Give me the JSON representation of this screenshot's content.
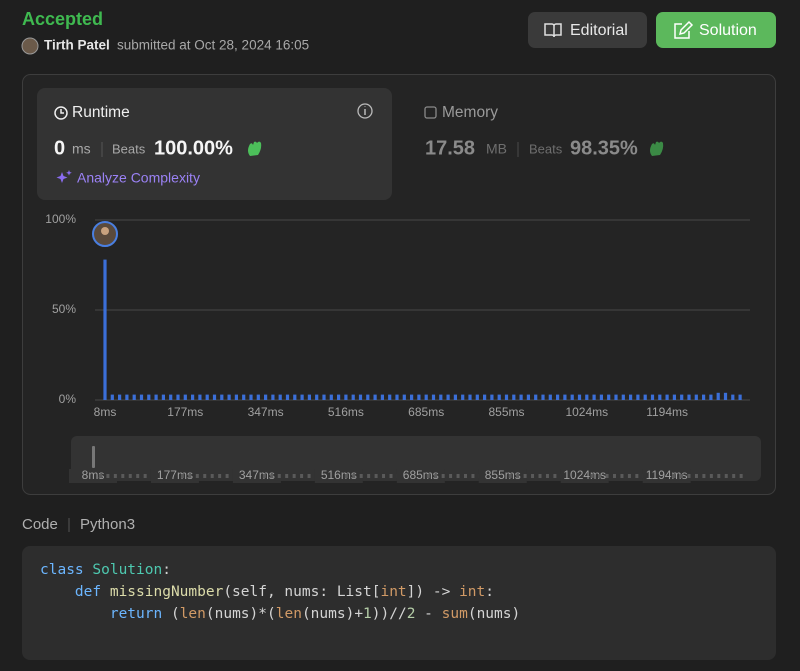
{
  "header": {
    "status": "Accepted",
    "user": "Tirth Patel",
    "submitted": "submitted at Oct 28, 2024 16:05",
    "buttons": [
      "Editorial",
      "Solution"
    ]
  },
  "runtime": {
    "title": "Runtime",
    "value": "0",
    "unit": "ms",
    "beats_label": "Beats",
    "beats": "100.00%",
    "action": "Analyze Complexity"
  },
  "memory": {
    "title": "Memory",
    "value": "17.58",
    "unit": "MB",
    "beats_label": "Beats",
    "beats": "98.35%"
  },
  "chart_data": {
    "type": "bar",
    "color": "#3b6fd8",
    "ylim": [
      0,
      100
    ],
    "yticks": [
      {
        "value": 0,
        "label": "0%"
      },
      {
        "value": 50,
        "label": "50%"
      },
      {
        "value": 100,
        "label": "100%"
      }
    ],
    "grid": true,
    "categories": [
      "8ms",
      null,
      null,
      null,
      null,
      null,
      null,
      null,
      null,
      null,
      null,
      "177ms",
      null,
      null,
      null,
      null,
      null,
      null,
      null,
      null,
      null,
      null,
      "347ms",
      null,
      null,
      null,
      null,
      null,
      null,
      null,
      null,
      null,
      null,
      "516ms",
      null,
      null,
      null,
      null,
      null,
      null,
      null,
      null,
      null,
      null,
      "685ms",
      null,
      null,
      null,
      null,
      null,
      null,
      null,
      null,
      null,
      null,
      "855ms",
      null,
      null,
      null,
      null,
      null,
      null,
      null,
      null,
      null,
      null,
      "1024ms",
      null,
      null,
      null,
      null,
      null,
      null,
      null,
      null,
      null,
      null,
      "1194ms",
      null,
      null,
      null,
      null,
      null,
      null,
      null,
      null,
      null,
      null
    ],
    "values": [
      78,
      3,
      3,
      3,
      3,
      3,
      3,
      3,
      3,
      3,
      3,
      3,
      3,
      3,
      3,
      3,
      3,
      3,
      3,
      3,
      3,
      3,
      3,
      3,
      3,
      3,
      3,
      3,
      3,
      3,
      3,
      3,
      3,
      3,
      3,
      3,
      3,
      3,
      3,
      3,
      3,
      3,
      3,
      3,
      3,
      3,
      3,
      3,
      3,
      3,
      3,
      3,
      3,
      3,
      3,
      3,
      3,
      3,
      3,
      3,
      3,
      3,
      3,
      3,
      3,
      3,
      3,
      3,
      3,
      3,
      3,
      3,
      3,
      3,
      3,
      3,
      3,
      3,
      3,
      3,
      3,
      3,
      3,
      3,
      4,
      4,
      3,
      3
    ]
  },
  "code": {
    "label": "Code",
    "language": "Python3",
    "lines": [
      [
        {
          "text": "class",
          "color": "#6cb6ff"
        },
        {
          "text": " Solution",
          "color": "#4ec9b0"
        },
        {
          "text": ":",
          "color": "#d4d4d4"
        }
      ],
      [
        {
          "text": "    def",
          "color": "#6cb6ff"
        },
        {
          "text": " missingNumber",
          "color": "#dcdcaa"
        },
        {
          "text": "(self, nums: List[",
          "color": "#d4d4d4"
        },
        {
          "text": "int",
          "color": "#d19a66"
        },
        {
          "text": "]) -> ",
          "color": "#d4d4d4"
        },
        {
          "text": "int",
          "color": "#d19a66"
        },
        {
          "text": ":",
          "color": "#d4d4d4"
        }
      ],
      [
        {
          "text": "        return",
          "color": "#6cb6ff"
        },
        {
          "text": " (",
          "color": "#d4d4d4"
        },
        {
          "text": "len",
          "color": "#d19a66"
        },
        {
          "text": "(nums)*(",
          "color": "#d4d4d4"
        },
        {
          "text": "len",
          "color": "#d19a66"
        },
        {
          "text": "(nums)+",
          "color": "#d4d4d4"
        },
        {
          "text": "1",
          "color": "#b5cea8"
        },
        {
          "text": "))//",
          "color": "#d4d4d4"
        },
        {
          "text": "2",
          "color": "#b5cea8"
        },
        {
          "text": " - ",
          "color": "#d4d4d4"
        },
        {
          "text": "sum",
          "color": "#d19a66"
        },
        {
          "text": "(nums)",
          "color": "#d4d4d4"
        }
      ]
    ]
  }
}
